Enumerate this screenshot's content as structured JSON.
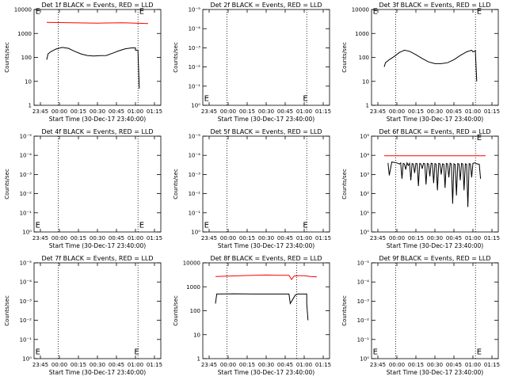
{
  "figure": {
    "background": "#ffffff",
    "axis_color": "#000000",
    "events_color": "#000000",
    "lld_color": "#ff0000"
  },
  "chart_data": [
    {
      "type": "line",
      "title": "Det 1f BLACK = Events, RED = LLD",
      "ylabel": "Counts/sec",
      "xlabel": "Start Time (30-Dec-17 23:40:00)",
      "x_ticks": [
        "23:45",
        "00:00",
        "00:15",
        "00:30",
        "00:45",
        "01:00",
        "01:15"
      ],
      "y_scale": "log",
      "y_ticks": [
        "1",
        "10",
        "100",
        "1000",
        "10000"
      ],
      "ylim": [
        1,
        10000
      ],
      "xlim": [
        "23:40",
        "01:20"
      ],
      "marker_lines": [
        "23:59",
        "01:02"
      ],
      "annotations": [
        {
          "text": "E",
          "x": "23:41",
          "y": 9000
        },
        {
          "text": "E",
          "x": "01:03",
          "y": 9000
        }
      ],
      "series": [
        {
          "color": "#ff0000",
          "x": [
            "23:50",
            "00:10",
            "00:30",
            "00:50",
            "01:10"
          ],
          "y": [
            2900,
            2800,
            2700,
            2800,
            2600
          ]
        },
        {
          "color": "#000000",
          "x": [
            "23:50",
            "23:51",
            "23:53",
            "23:57",
            "00:02",
            "00:07",
            "00:12",
            "00:17",
            "00:22",
            "00:27",
            "00:32",
            "00:37",
            "00:42",
            "00:47",
            "00:52",
            "00:57",
            "01:00",
            "01:00",
            "01:02",
            "01:02",
            "01:03"
          ],
          "y": [
            80,
            140,
            170,
            220,
            260,
            240,
            180,
            140,
            120,
            115,
            118,
            120,
            150,
            190,
            230,
            250,
            250,
            200,
            200,
            170,
            5
          ]
        }
      ]
    },
    {
      "type": "line",
      "title": "Det 2f BLACK = Events, RED = LLD",
      "ylabel": "Counts/sec",
      "xlabel": "Start Time (30-Dec-17 23:40:00)",
      "x_ticks": [
        "23:45",
        "00:00",
        "00:15",
        "00:30",
        "00:45",
        "01:00",
        "01:15"
      ],
      "y_scale": "log",
      "y_ticks": [
        "10⁰",
        "10⁻¹",
        "10⁻²",
        "10⁻³",
        "10⁻⁴",
        "10⁻⁵"
      ],
      "ylim": [
        1,
        1000000
      ],
      "xlim": [
        "23:40",
        "01:20"
      ],
      "marker_lines": [
        "23:59",
        "01:02"
      ],
      "annotations": [
        {
          "text": "E",
          "x": "23:41",
          "y": 3
        },
        {
          "text": "E",
          "x": "00:59",
          "y": 3
        }
      ],
      "series": []
    },
    {
      "type": "line",
      "title": "Det 3f BLACK = Events, RED = LLD",
      "ylabel": "Counts/sec",
      "xlabel": "Start Time (30-Dec-17 23:40:00)",
      "x_ticks": [
        "23:45",
        "00:00",
        "00:15",
        "00:30",
        "00:45",
        "01:00",
        "01:15"
      ],
      "y_scale": "log",
      "y_ticks": [
        "1",
        "10",
        "100",
        "1000",
        "10000"
      ],
      "ylim": [
        1,
        10000
      ],
      "xlim": [
        "23:40",
        "01:20"
      ],
      "marker_lines": [
        "23:59",
        "01:02"
      ],
      "annotations": [
        {
          "text": "E",
          "x": "23:41",
          "y": 9000
        },
        {
          "text": "E",
          "x": "01:03",
          "y": 9000
        }
      ],
      "series": [
        {
          "color": "#000000",
          "x": [
            "23:50",
            "23:51",
            "23:54",
            "23:58",
            "00:02",
            "00:06",
            "00:10",
            "00:15",
            "00:20",
            "00:25",
            "00:30",
            "00:35",
            "00:40",
            "00:45",
            "00:50",
            "00:55",
            "00:59",
            "01:00",
            "01:02",
            "01:02",
            "01:03"
          ],
          "y": [
            40,
            60,
            80,
            110,
            160,
            200,
            180,
            130,
            90,
            65,
            55,
            55,
            60,
            80,
            120,
            170,
            200,
            170,
            190,
            150,
            10
          ]
        }
      ]
    },
    {
      "type": "line",
      "title": "Det 4f BLACK = Events, RED = LLD",
      "ylabel": "Counts/sec",
      "xlabel": "Start Time (30-Dec-17 23:40:00)",
      "x_ticks": [
        "23:45",
        "00:00",
        "00:15",
        "00:30",
        "00:45",
        "01:00",
        "01:15"
      ],
      "y_scale": "log",
      "y_ticks": [
        "10⁰",
        "10⁻¹",
        "10⁻²",
        "10⁻³",
        "10⁻⁴",
        "10⁻⁵"
      ],
      "ylim": [
        1,
        1000000
      ],
      "xlim": [
        "23:40",
        "01:20"
      ],
      "marker_lines": [
        "23:59",
        "01:02"
      ],
      "annotations": [
        {
          "text": "E",
          "x": "23:41",
          "y": 3
        },
        {
          "text": "E",
          "x": "01:03",
          "y": 3
        }
      ],
      "series": []
    },
    {
      "type": "line",
      "title": "Det 5f BLACK = Events, RED = LLD",
      "ylabel": "Counts/sec",
      "xlabel": "Start Time (30-Dec-17 23:40:00)",
      "x_ticks": [
        "23:45",
        "00:00",
        "00:15",
        "00:30",
        "00:45",
        "01:00",
        "01:15"
      ],
      "y_scale": "log",
      "y_ticks": [
        "10⁰",
        "10⁻¹",
        "10⁻²",
        "10⁻³",
        "10⁻⁴",
        "10⁻⁵"
      ],
      "ylim": [
        1,
        1000000
      ],
      "xlim": [
        "23:40",
        "01:20"
      ],
      "marker_lines": [
        "23:59",
        "01:02"
      ],
      "annotations": [
        {
          "text": "E",
          "x": "23:41",
          "y": 3
        },
        {
          "text": "E",
          "x": "00:59",
          "y": 3
        }
      ],
      "series": []
    },
    {
      "type": "line",
      "title": "Det 6f BLACK = Events, RED = LLD",
      "ylabel": "Counts/sec",
      "xlabel": "Start Time (30-Dec-17 23:40:00)",
      "x_ticks": [
        "23:45",
        "00:00",
        "00:15",
        "00:30",
        "00:45",
        "01:00",
        "01:15"
      ],
      "y_scale": "log",
      "y_ticks": [
        "10⁰",
        "10¹",
        "10²",
        "10³",
        "10⁴",
        "10⁵"
      ],
      "ylim": [
        1,
        100000
      ],
      "xlim": [
        "23:40",
        "01:20"
      ],
      "marker_lines": [
        "23:59",
        "01:02"
      ],
      "annotations": [
        {
          "text": "E",
          "x": "01:03",
          "y": 90000
        }
      ],
      "series": [
        {
          "color": "#ff0000",
          "x": [
            "23:50",
            "00:15",
            "00:40",
            "01:05",
            "01:10"
          ],
          "y": [
            9500,
            9500,
            9500,
            9500,
            9500
          ]
        },
        {
          "color": "#000000",
          "x": [
            "23:53",
            "23:54",
            "23:55",
            "23:56",
            "00:00",
            "00:02",
            "00:03",
            "00:04",
            "00:05",
            "00:06",
            "00:07",
            "00:08",
            "00:09",
            "00:10",
            "00:11",
            "00:12",
            "00:13",
            "00:14",
            "00:15",
            "00:16",
            "00:17",
            "00:18",
            "00:19",
            "00:20",
            "00:21",
            "00:22",
            "00:23",
            "00:24",
            "00:25",
            "00:26",
            "00:27",
            "00:28",
            "00:29",
            "00:30",
            "00:31",
            "00:32",
            "00:33",
            "00:34",
            "00:35",
            "00:36",
            "00:37",
            "00:38",
            "00:39",
            "00:40",
            "00:41",
            "00:42",
            "00:43",
            "00:44",
            "00:45",
            "00:46",
            "00:47",
            "00:48",
            "00:49",
            "00:50",
            "00:51",
            "00:52",
            "00:53",
            "00:54",
            "00:55",
            "00:56",
            "00:57",
            "00:58",
            "00:59",
            "01:00",
            "01:01",
            "01:02",
            "01:03",
            "01:05",
            "01:06"
          ],
          "y": [
            4000,
            900,
            2000,
            4500,
            4000,
            3500,
            4000,
            600,
            3800,
            3500,
            1800,
            4000,
            3000,
            3800,
            500,
            3700,
            3500,
            1200,
            3800,
            3600,
            250,
            3800,
            3500,
            2000,
            3800,
            3600,
            300,
            3800,
            3500,
            800,
            3900,
            3700,
            350,
            3700,
            3400,
            150,
            3800,
            3600,
            1000,
            3600,
            3400,
            200,
            3800,
            3500,
            700,
            3900,
            3400,
            30,
            3600,
            3300,
            80,
            3700,
            3500,
            500,
            3800,
            3500,
            150,
            3600,
            3400,
            20,
            3700,
            3500,
            700,
            3800,
            4000,
            3900,
            3600,
            3400,
            600
          ]
        }
      ]
    },
    {
      "type": "line",
      "title": "Det 7f BLACK = Events, RED = LLD",
      "ylabel": "Counts/sec",
      "xlabel": "Start Time (30-Dec-17 23:40:00)",
      "x_ticks": [
        "23:45",
        "00:00",
        "00:15",
        "00:30",
        "00:45",
        "01:00",
        "01:15"
      ],
      "y_scale": "log",
      "y_ticks": [
        "10⁰",
        "10⁻¹",
        "10⁻²",
        "10⁻³",
        "10⁻⁴",
        "10⁻⁵"
      ],
      "ylim": [
        1,
        1000000
      ],
      "xlim": [
        "23:40",
        "01:20"
      ],
      "marker_lines": [
        "23:59",
        "01:02"
      ],
      "annotations": [
        {
          "text": "E",
          "x": "23:41",
          "y": 3
        },
        {
          "text": "E",
          "x": "00:59",
          "y": 3
        }
      ],
      "series": []
    },
    {
      "type": "line",
      "title": "Det 8f BLACK = Events, RED = LLD",
      "ylabel": "Counts/sec",
      "xlabel": "Start Time (30-Dec-17 23:40:00)",
      "x_ticks": [
        "23:45",
        "00:00",
        "00:15",
        "00:30",
        "00:45",
        "01:00",
        "01:15"
      ],
      "y_scale": "log",
      "y_ticks": [
        "1",
        "10",
        "100",
        "1000",
        "10000"
      ],
      "ylim": [
        1,
        10000
      ],
      "xlim": [
        "23:40",
        "01:20"
      ],
      "marker_lines": [
        "23:59",
        "00:54"
      ],
      "annotations": [],
      "series": [
        {
          "color": "#ff0000",
          "x": [
            "23:50",
            "00:00",
            "00:10",
            "00:20",
            "00:30",
            "00:40",
            "00:48",
            "00:49",
            "00:50",
            "00:52",
            "00:55",
            "01:00",
            "01:05",
            "01:10"
          ],
          "y": [
            2700,
            2800,
            2900,
            3000,
            3100,
            3000,
            3000,
            2500,
            2000,
            2800,
            2900,
            2900,
            2700,
            2600
          ]
        },
        {
          "color": "#000000",
          "x": [
            "23:50",
            "23:51",
            "00:05",
            "00:20",
            "00:35",
            "00:48",
            "00:49",
            "00:53",
            "00:55",
            "01:00",
            "01:02",
            "01:02",
            "01:03"
          ],
          "y": [
            200,
            500,
            510,
            500,
            500,
            500,
            200,
            450,
            500,
            500,
            500,
            200,
            40
          ]
        }
      ]
    },
    {
      "type": "line",
      "title": "Det 9f BLACK = Events, RED = LLD",
      "ylabel": "Counts/sec",
      "xlabel": "Start Time (30-Dec-17 23:40:00)",
      "x_ticks": [
        "23:45",
        "00:00",
        "00:15",
        "00:30",
        "00:45",
        "01:00",
        "01:15"
      ],
      "y_scale": "log",
      "y_ticks": [
        "10⁰",
        "10⁻¹",
        "10⁻²",
        "10⁻³",
        "10⁻⁴",
        "10⁻⁵"
      ],
      "ylim": [
        1,
        1000000
      ],
      "xlim": [
        "23:40",
        "01:20"
      ],
      "marker_lines": [
        "23:59",
        "01:02"
      ],
      "annotations": [
        {
          "text": "E",
          "x": "23:41",
          "y": 3
        },
        {
          "text": "E",
          "x": "01:03",
          "y": 3
        }
      ],
      "series": []
    }
  ]
}
